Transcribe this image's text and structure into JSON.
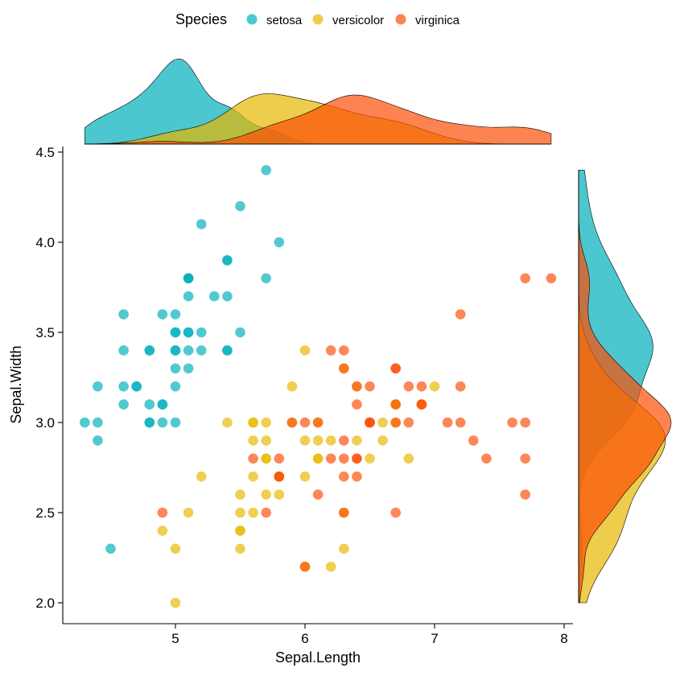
{
  "chart_data": {
    "type": "scatter",
    "title": "",
    "xlabel": "Sepal.Length",
    "ylabel": "Sepal.Width",
    "xlim": [
      4.2,
      8.1
    ],
    "ylim": [
      1.9,
      4.5
    ],
    "xticks": [
      5,
      6,
      7,
      8
    ],
    "yticks": [
      2.0,
      2.5,
      3.0,
      3.5,
      4.0,
      4.5
    ],
    "ytick_labels": [
      "2.0",
      "2.5",
      "3.0",
      "3.5",
      "4.0",
      "4.5"
    ],
    "grid": false,
    "legend": {
      "title": "Species",
      "placement": "top"
    },
    "marginals": {
      "top": "density",
      "right": "density"
    },
    "series": [
      {
        "name": "setosa",
        "color": "#00AFBB",
        "x": [
          5.1,
          4.9,
          4.7,
          4.6,
          5.0,
          5.4,
          4.6,
          5.0,
          4.4,
          4.9,
          5.4,
          4.8,
          4.8,
          4.3,
          5.8,
          5.7,
          5.4,
          5.1,
          5.7,
          5.1,
          5.4,
          5.1,
          4.6,
          5.1,
          4.8,
          5.0,
          5.0,
          5.2,
          5.2,
          4.7,
          4.8,
          5.4,
          5.2,
          5.5,
          4.9,
          5.0,
          5.5,
          4.9,
          4.4,
          5.1,
          5.0,
          4.5,
          4.4,
          5.0,
          5.1,
          4.8,
          5.1,
          4.6,
          5.3,
          5.0
        ],
        "y": [
          3.5,
          3.0,
          3.2,
          3.1,
          3.6,
          3.9,
          3.4,
          3.4,
          2.9,
          3.1,
          3.7,
          3.4,
          3.0,
          3.0,
          4.0,
          4.4,
          3.9,
          3.5,
          3.8,
          3.8,
          3.4,
          3.7,
          3.6,
          3.3,
          3.4,
          3.0,
          3.4,
          3.5,
          3.4,
          3.2,
          3.1,
          3.4,
          4.1,
          4.2,
          3.1,
          3.2,
          3.5,
          3.6,
          3.0,
          3.4,
          3.5,
          2.3,
          3.2,
          3.5,
          3.8,
          3.0,
          3.8,
          3.2,
          3.7,
          3.3
        ]
      },
      {
        "name": "versicolor",
        "color": "#E7B800",
        "x": [
          7.0,
          6.4,
          6.9,
          5.5,
          6.5,
          5.7,
          6.3,
          4.9,
          6.6,
          5.2,
          5.0,
          5.9,
          6.0,
          6.1,
          5.6,
          6.7,
          5.6,
          5.8,
          6.2,
          5.6,
          5.9,
          6.1,
          6.3,
          6.1,
          6.4,
          6.6,
          6.8,
          6.7,
          6.0,
          5.7,
          5.5,
          5.5,
          5.8,
          6.0,
          5.4,
          6.0,
          6.7,
          6.3,
          5.6,
          5.5,
          5.5,
          6.1,
          5.8,
          5.0,
          5.6,
          5.7,
          5.7,
          6.2,
          5.1,
          5.7
        ],
        "y": [
          3.2,
          3.2,
          3.1,
          2.3,
          2.8,
          2.8,
          3.3,
          2.4,
          2.9,
          2.7,
          2.0,
          3.0,
          2.2,
          2.9,
          2.9,
          3.1,
          3.0,
          2.7,
          2.2,
          2.5,
          3.2,
          2.8,
          2.5,
          2.8,
          2.9,
          3.0,
          2.8,
          3.0,
          2.9,
          2.6,
          2.4,
          2.4,
          2.7,
          2.7,
          3.0,
          3.4,
          3.1,
          2.3,
          3.0,
          2.5,
          2.6,
          3.0,
          2.6,
          2.3,
          2.7,
          3.0,
          2.9,
          2.9,
          2.5,
          2.8
        ]
      },
      {
        "name": "virginica",
        "color": "#FC4E07",
        "x": [
          6.3,
          5.8,
          7.1,
          6.3,
          6.5,
          7.6,
          4.9,
          7.3,
          6.7,
          7.2,
          6.5,
          6.4,
          6.8,
          5.7,
          5.8,
          6.4,
          6.5,
          7.7,
          7.7,
          6.0,
          6.9,
          5.6,
          7.7,
          6.3,
          6.7,
          7.2,
          6.2,
          6.1,
          6.4,
          7.2,
          7.4,
          7.9,
          6.4,
          6.3,
          6.1,
          7.7,
          6.3,
          6.4,
          6.0,
          6.9,
          6.7,
          6.9,
          5.8,
          6.8,
          6.7,
          6.7,
          6.3,
          6.5,
          6.2,
          5.9
        ],
        "y": [
          3.3,
          2.7,
          3.0,
          2.9,
          3.0,
          3.0,
          2.5,
          2.9,
          2.5,
          3.6,
          3.2,
          2.7,
          3.0,
          2.5,
          2.8,
          3.2,
          3.0,
          3.8,
          2.6,
          2.2,
          3.2,
          2.8,
          2.8,
          2.7,
          3.3,
          3.2,
          2.8,
          3.0,
          2.8,
          3.0,
          2.8,
          3.8,
          2.8,
          2.8,
          2.6,
          3.0,
          3.4,
          3.1,
          3.0,
          3.1,
          3.1,
          3.1,
          2.7,
          3.2,
          3.3,
          3.0,
          2.5,
          3.0,
          3.4,
          3.0
        ]
      }
    ]
  }
}
